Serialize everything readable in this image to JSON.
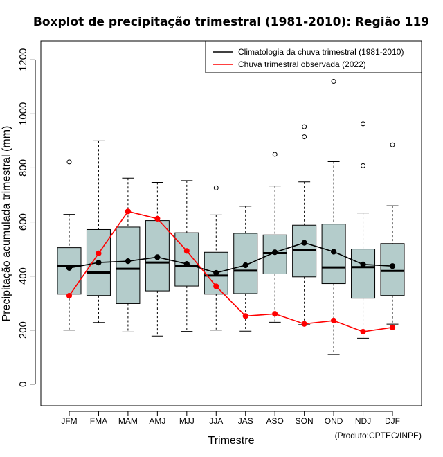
{
  "chart_data": {
    "type": "boxplot",
    "title": "Boxplot de precipitação trimestral (1981-2010): Região 119",
    "xlabel": "Trimestre",
    "ylabel": "Precipitação acumulada trimestral (mm)",
    "credit": "(Produto:CPTEC/INPE)",
    "ylim": [
      -80,
      1270
    ],
    "yticks": [
      0,
      200,
      400,
      600,
      800,
      1000,
      1200
    ],
    "categories": [
      "JFM",
      "FMA",
      "MAM",
      "AMJ",
      "MJJ",
      "JJA",
      "JAS",
      "ASO",
      "SON",
      "OND",
      "NDJ",
      "DJF"
    ],
    "boxes": [
      {
        "whisker_low": 200,
        "q1": 333,
        "median": 438,
        "q3": 505,
        "whisker_high": 628,
        "outliers": [
          822
        ]
      },
      {
        "whisker_low": 228,
        "q1": 328,
        "median": 413,
        "q3": 572,
        "whisker_high": 900,
        "outliers": []
      },
      {
        "whisker_low": 193,
        "q1": 298,
        "median": 427,
        "q3": 581,
        "whisker_high": 762,
        "outliers": []
      },
      {
        "whisker_low": 178,
        "q1": 345,
        "median": 450,
        "q3": 605,
        "whisker_high": 746,
        "outliers": []
      },
      {
        "whisker_low": 195,
        "q1": 363,
        "median": 437,
        "q3": 560,
        "whisker_high": 753,
        "outliers": []
      },
      {
        "whisker_low": 200,
        "q1": 333,
        "median": 402,
        "q3": 488,
        "whisker_high": 626,
        "outliers": [
          726
        ]
      },
      {
        "whisker_low": 196,
        "q1": 335,
        "median": 420,
        "q3": 558,
        "whisker_high": 658,
        "outliers": []
      },
      {
        "whisker_low": 229,
        "q1": 408,
        "median": 485,
        "q3": 552,
        "whisker_high": 733,
        "outliers": [
          850
        ]
      },
      {
        "whisker_low": 220,
        "q1": 397,
        "median": 495,
        "q3": 588,
        "whisker_high": 748,
        "outliers": [
          915,
          952
        ]
      },
      {
        "whisker_low": 110,
        "q1": 372,
        "median": 432,
        "q3": 592,
        "whisker_high": 823,
        "outliers": [
          1120
        ]
      },
      {
        "whisker_low": 170,
        "q1": 318,
        "median": 433,
        "q3": 500,
        "whisker_high": 633,
        "outliers": [
          808,
          963
        ]
      },
      {
        "whisker_low": 222,
        "q1": 328,
        "median": 419,
        "q3": 520,
        "whisker_high": 660,
        "outliers": [
          885
        ]
      }
    ],
    "series": [
      {
        "name": "Climatologia da chuva trimestral (1981-2010)",
        "color": "#000000",
        "values": [
          430,
          450,
          455,
          470,
          445,
          412,
          440,
          488,
          523,
          490,
          443,
          437
        ]
      },
      {
        "name": "Chuva trimestral observada (2022)",
        "color": "#ff0000",
        "values": [
          327,
          484,
          639,
          612,
          493,
          362,
          252,
          260,
          223,
          235,
          194,
          210
        ]
      }
    ],
    "box_fill": "#b4cccb",
    "legend_position": "top-right"
  }
}
